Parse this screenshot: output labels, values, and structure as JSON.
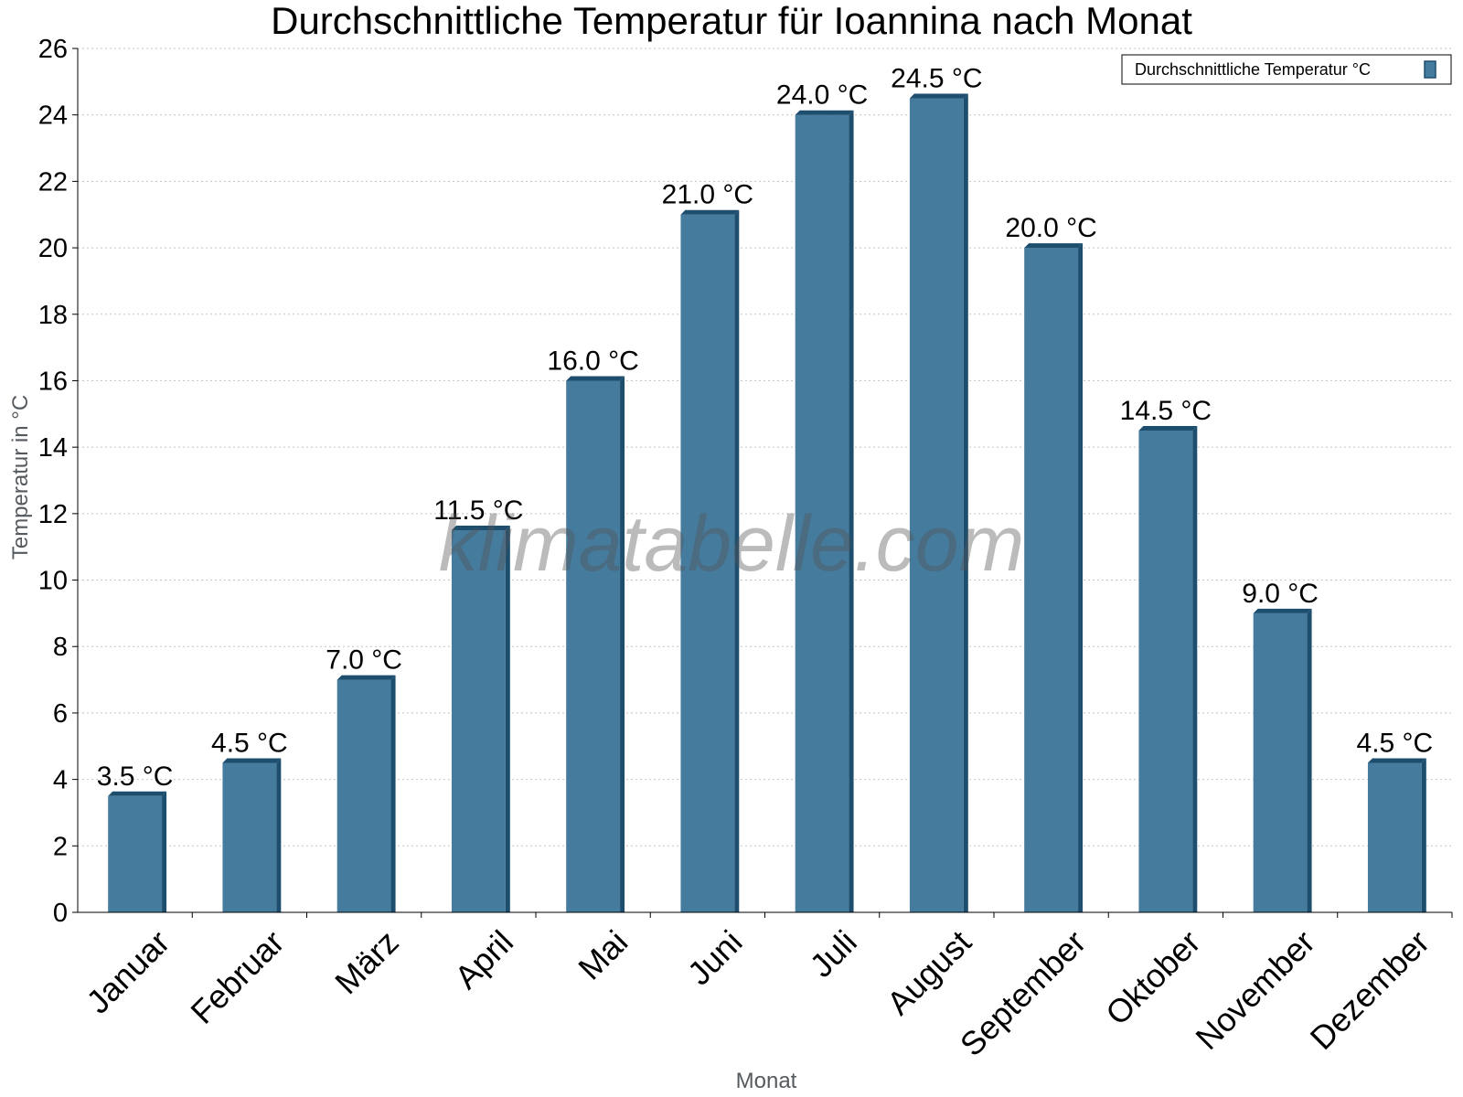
{
  "chart_data": {
    "type": "bar",
    "title": "Durchschnittliche Temperatur für Ioannina nach Monat",
    "xlabel": "Monat",
    "ylabel": "Temperatur in °C",
    "categories": [
      "Januar",
      "Februar",
      "März",
      "April",
      "Mai",
      "Juni",
      "Juli",
      "August",
      "September",
      "Oktober",
      "November",
      "Dezember"
    ],
    "series": [
      {
        "name": "Durchschnittliche Temperatur °C",
        "values": [
          3.5,
          4.5,
          7.0,
          11.5,
          16.0,
          21.0,
          24.0,
          24.5,
          20.0,
          14.5,
          9.0,
          4.5
        ],
        "labels": [
          "3.5 °C",
          "4.5 °C",
          "7.0 °C",
          "11.5 °C",
          "16.0 °C",
          "21.0 °C",
          "24.0 °C",
          "24.5 °C",
          "20.0 °C",
          "14.5 °C",
          "9.0 °C",
          "4.5 °C"
        ],
        "color": "#457b9d",
        "edge_color": "#1d4e6e"
      }
    ],
    "ylim": [
      0,
      26
    ],
    "yticks": [
      0,
      2,
      4,
      6,
      8,
      10,
      12,
      14,
      16,
      18,
      20,
      22,
      24,
      26
    ],
    "grid": true,
    "legend": "top-right",
    "watermark": "klimatabelle.com"
  }
}
